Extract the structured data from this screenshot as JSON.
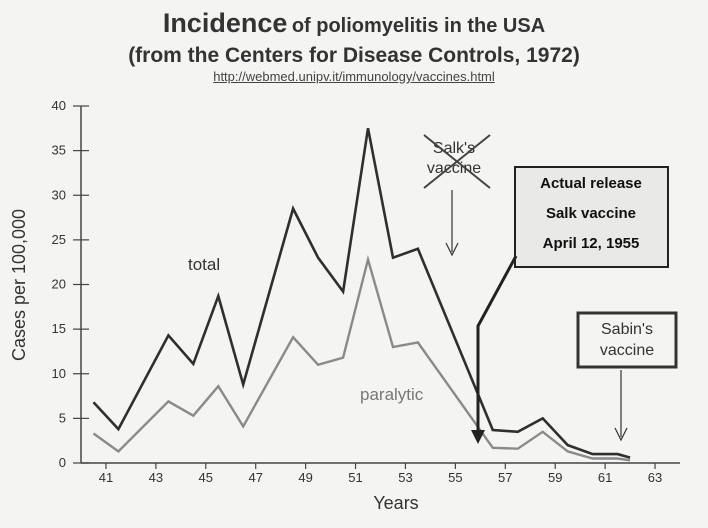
{
  "title": {
    "main": "Incidence",
    "main_rest": "of poliomyelitis in the USA",
    "subtitle": "(from the Centers for Disease Controls, 1972)",
    "url": "http://webmed.unipv.it/immunology/vaccines.html"
  },
  "chart_data": {
    "type": "line",
    "xlabel": "Years",
    "ylabel": "Cases per 100,000",
    "xlim": [
      40,
      64
    ],
    "ylim": [
      0,
      40
    ],
    "x_ticks": [
      41,
      43,
      45,
      47,
      49,
      51,
      53,
      55,
      57,
      59,
      61,
      63
    ],
    "y_ticks": [
      0,
      5,
      10,
      15,
      20,
      25,
      30,
      35,
      40
    ],
    "grid": false,
    "series": [
      {
        "name": "total",
        "color": "#2f2f2f",
        "x": [
          40.5,
          41.5,
          43.5,
          44.5,
          45.5,
          46.5,
          48.5,
          49.5,
          50.5,
          51.5,
          52.5,
          53.5,
          56.5,
          57.5,
          58.5,
          59.5,
          60.5,
          61.5,
          62
        ],
        "y": [
          6.8,
          3.8,
          14.3,
          11.1,
          18.7,
          8.8,
          28.5,
          23.0,
          19.2,
          37.5,
          23.0,
          24.0,
          3.7,
          3.5,
          5.0,
          2.0,
          1.0,
          1.0,
          0.6
        ]
      },
      {
        "name": "paralytic",
        "color": "#8a8a8a",
        "x": [
          40.5,
          41.5,
          43.5,
          44.5,
          45.5,
          46.5,
          48.5,
          49.5,
          50.5,
          51.5,
          52.5,
          53.5,
          56.5,
          57.5,
          58.5,
          59.5,
          60.5,
          61.5,
          62
        ],
        "y": [
          3.3,
          1.3,
          6.9,
          5.3,
          8.6,
          4.1,
          14.1,
          11.0,
          11.8,
          22.8,
          13.0,
          13.5,
          1.7,
          1.6,
          3.5,
          1.3,
          0.5,
          0.5,
          0.3
        ]
      }
    ],
    "annotations": {
      "salk_crossed": [
        "Salk's",
        "vaccine"
      ],
      "release": [
        "Actual release",
        "Salk vaccine",
        "April 12, 1955"
      ],
      "sabin": [
        "Sabin's",
        "vaccine"
      ]
    }
  }
}
